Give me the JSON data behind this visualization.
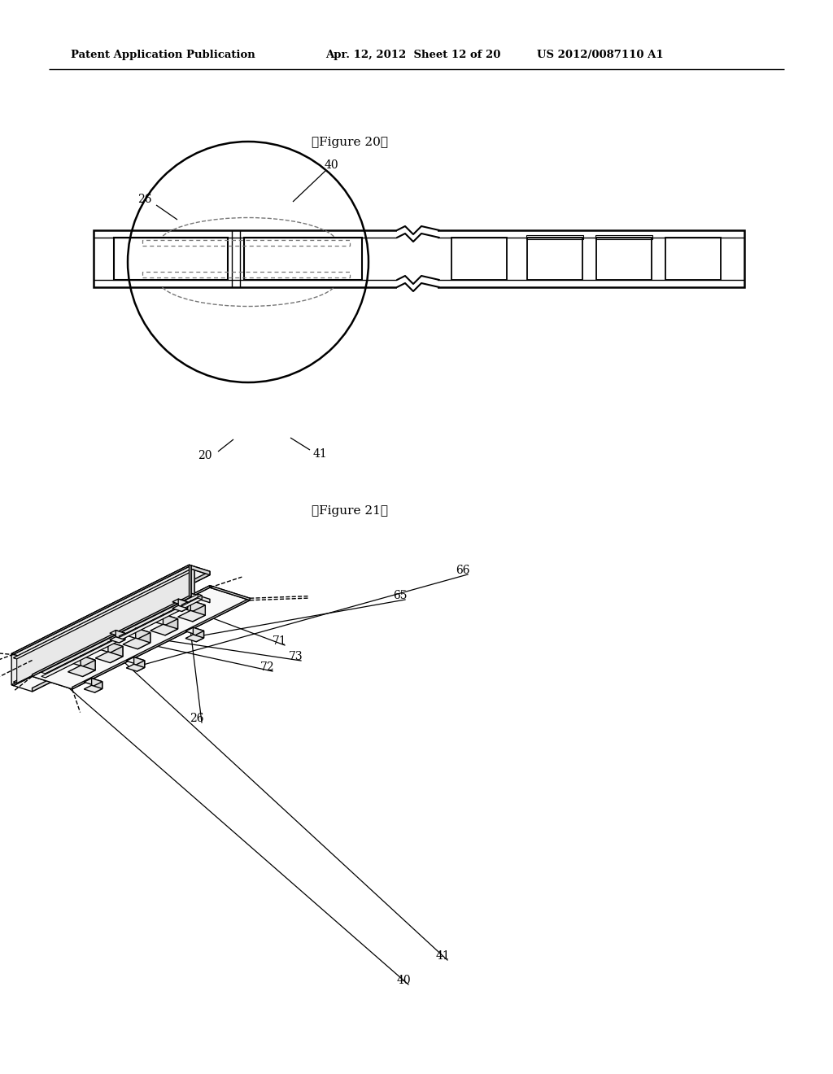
{
  "bg_color": "#ffffff",
  "header_text_left": "Patent Application Publication",
  "header_text_mid": "Apr. 12, 2012  Sheet 12 of 20",
  "header_text_right": "US 2012/0087110 A1",
  "fig20_title": "【Figure 20】",
  "fig21_title": "【Figure 21】",
  "line_color": "#000000",
  "dashed_color": "#777777",
  "gray_fill": "#f0f0f0",
  "mid_gray": "#d8d8d8",
  "dark_gray": "#b0b0b0"
}
